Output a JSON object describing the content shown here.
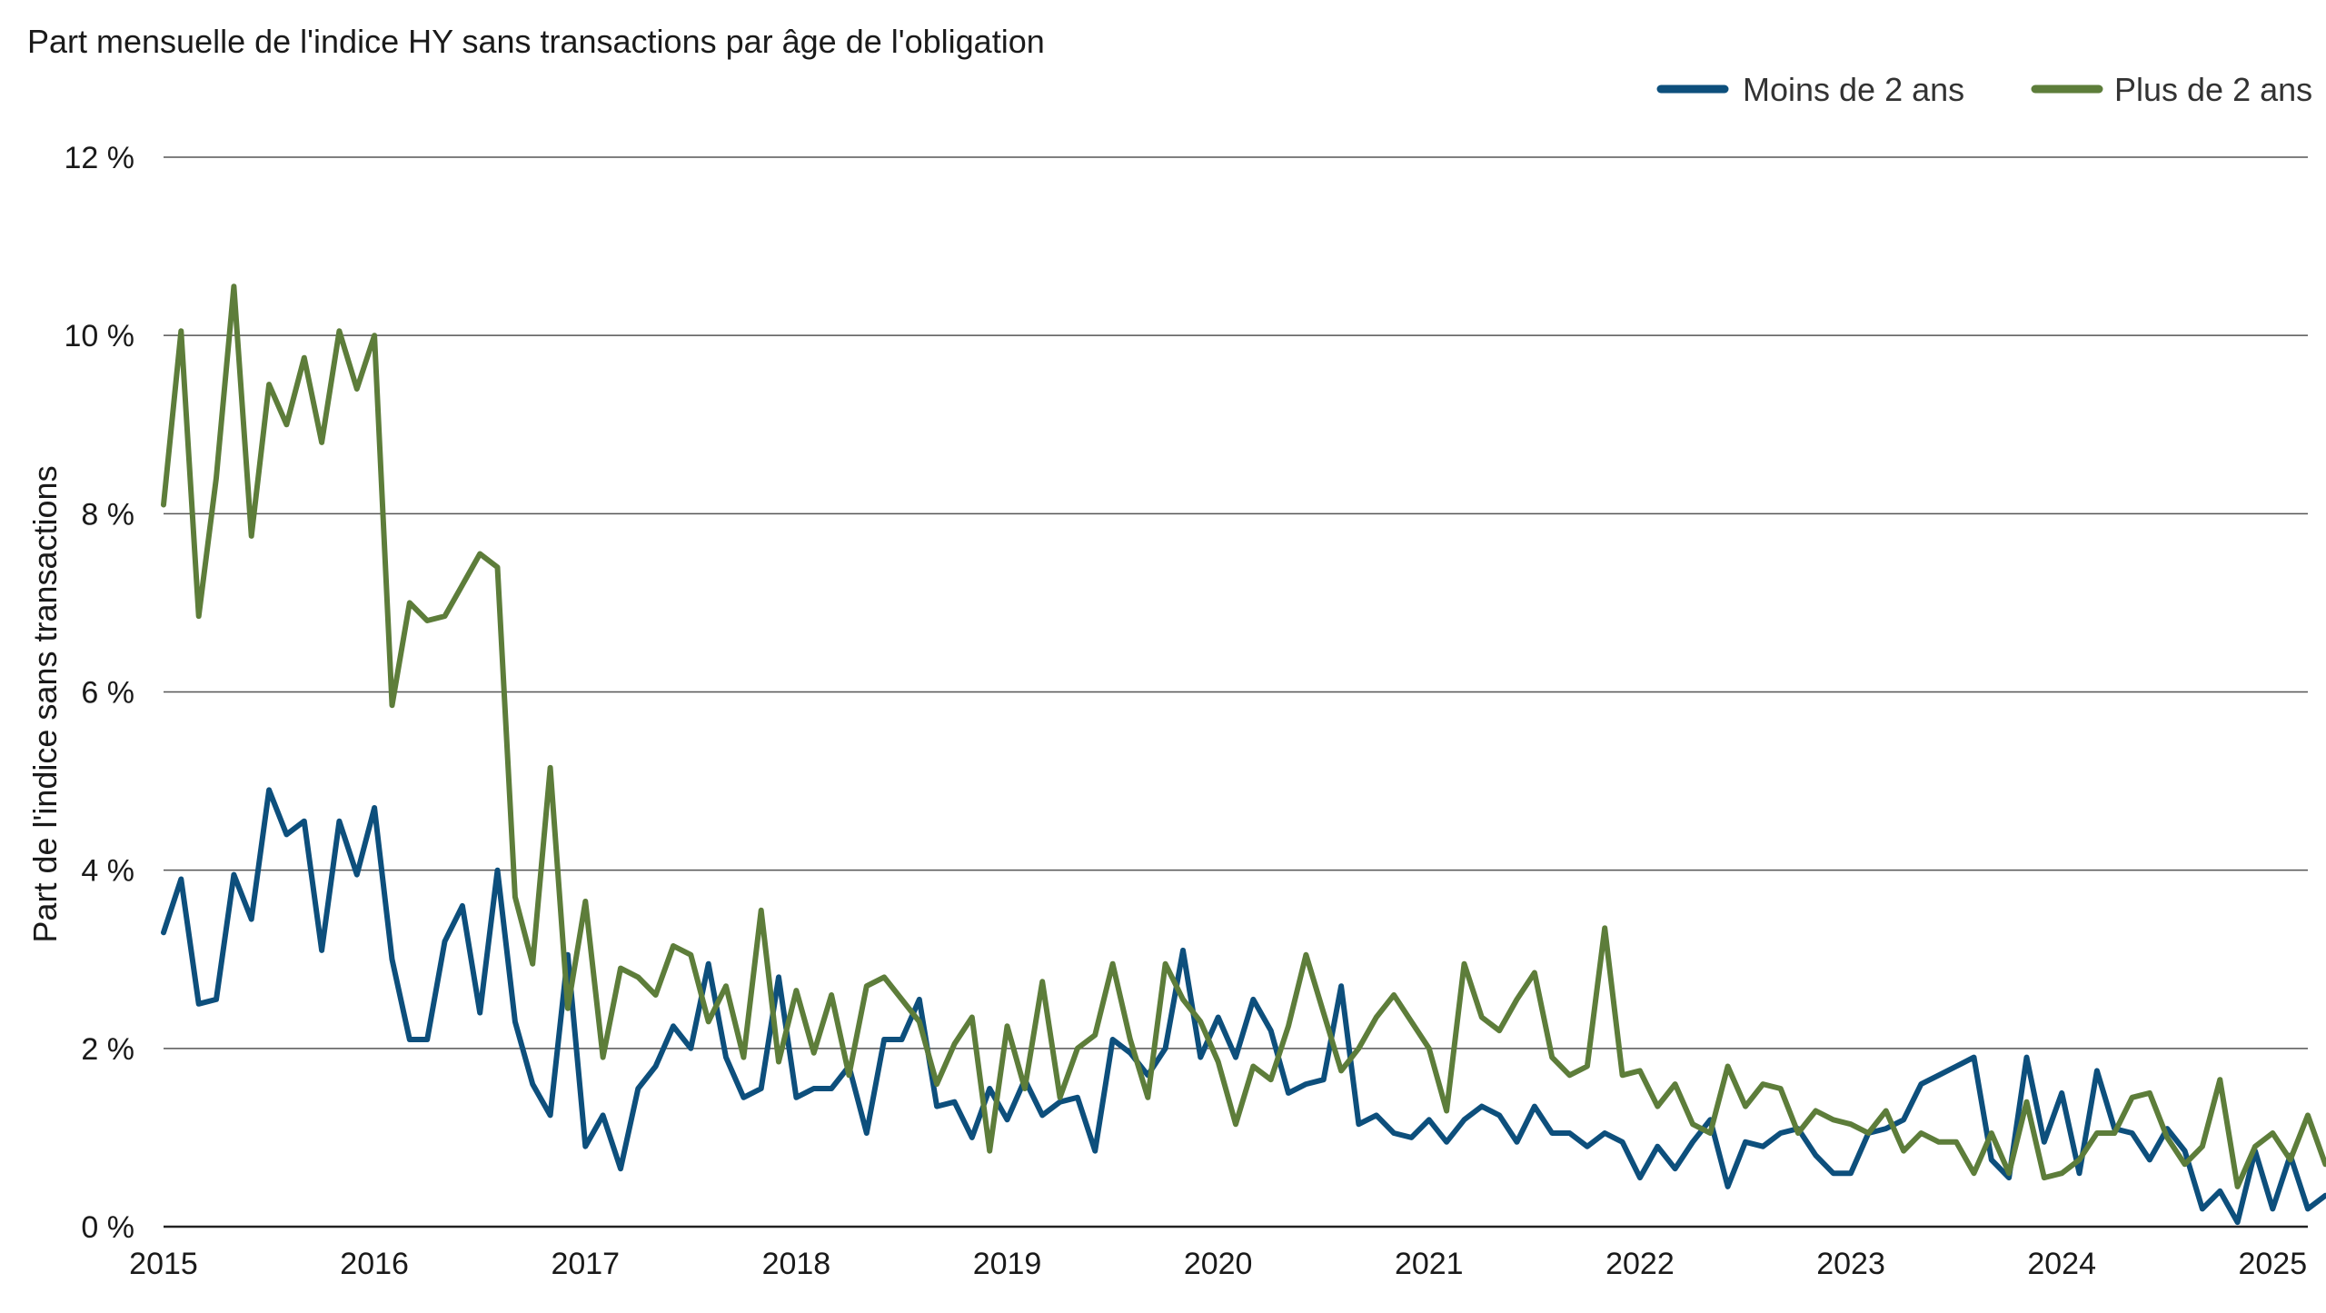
{
  "chart_data": {
    "type": "line",
    "title": "Part mensuelle de l'indice HY sans transactions par âge de l'obligation",
    "ylabel": "Part de l'indice sans transactions",
    "xlabel": "",
    "x_start": "2015-01",
    "x_ticks": [
      "2015",
      "2016",
      "2017",
      "2018",
      "2019",
      "2020",
      "2021",
      "2022",
      "2023",
      "2024",
      "2025"
    ],
    "xlim": [
      "2015-01",
      "2025-03"
    ],
    "ylim": [
      0,
      12
    ],
    "y_ticks": [
      0,
      2,
      4,
      6,
      8,
      10,
      12
    ],
    "y_tick_labels": [
      "0 %",
      "2 %",
      "4 %",
      "6 %",
      "8 %",
      "10 %",
      "12 %"
    ],
    "grid": true,
    "legend_position": "top-right",
    "series": [
      {
        "name": "Moins de 2 ans",
        "color": "#0d4f7c",
        "values": [
          3.3,
          3.9,
          2.5,
          2.55,
          3.95,
          3.45,
          4.9,
          4.4,
          4.55,
          3.1,
          4.55,
          3.95,
          4.7,
          3.0,
          2.1,
          2.1,
          3.2,
          3.6,
          2.4,
          4.0,
          2.3,
          1.6,
          1.25,
          3.05,
          0.9,
          1.25,
          0.65,
          1.55,
          1.8,
          2.25,
          2.0,
          2.95,
          1.9,
          1.45,
          1.55,
          2.8,
          1.45,
          1.55,
          1.55,
          1.8,
          1.05,
          2.1,
          2.1,
          2.55,
          1.35,
          1.4,
          1.0,
          1.55,
          1.2,
          1.65,
          1.25,
          1.4,
          1.45,
          0.85,
          2.1,
          1.95,
          1.7,
          2.0,
          3.1,
          1.9,
          2.35,
          1.9,
          2.55,
          2.2,
          1.5,
          1.6,
          1.65,
          2.7,
          1.15,
          1.25,
          1.05,
          1.0,
          1.2,
          0.95,
          1.2,
          1.35,
          1.25,
          0.95,
          1.35,
          1.05,
          1.05,
          0.9,
          1.05,
          0.95,
          0.55,
          0.9,
          0.65,
          0.95,
          1.2,
          0.45,
          0.95,
          0.9,
          1.05,
          1.1,
          0.8,
          0.6,
          0.6,
          1.05,
          1.1,
          1.2,
          1.6,
          1.7,
          1.8,
          1.9,
          0.75,
          0.55,
          1.9,
          0.95,
          1.5,
          0.6,
          1.75,
          1.1,
          1.05,
          0.75,
          1.1,
          0.85,
          0.2,
          0.4,
          0.05,
          0.85,
          0.2,
          0.8,
          0.2,
          0.35,
          0.35,
          0.65,
          0.8,
          0.75,
          0.6,
          0.2,
          0.85,
          0.3,
          0.4,
          0.15,
          1.05
        ]
      },
      {
        "name": "Plus de 2 ans",
        "color": "#5d7d3a",
        "values": [
          8.1,
          10.05,
          6.85,
          8.4,
          10.55,
          7.75,
          9.45,
          9.0,
          9.75,
          8.8,
          10.05,
          9.4,
          10.0,
          5.85,
          7.0,
          6.8,
          6.85,
          7.2,
          7.55,
          7.4,
          3.7,
          2.95,
          5.15,
          2.45,
          3.65,
          1.9,
          2.9,
          2.8,
          2.6,
          3.15,
          3.05,
          2.3,
          2.7,
          1.9,
          3.55,
          1.85,
          2.65,
          1.95,
          2.6,
          1.7,
          2.7,
          2.8,
          2.55,
          2.3,
          1.6,
          2.05,
          2.35,
          0.85,
          2.25,
          1.55,
          2.75,
          1.45,
          2.0,
          2.15,
          2.95,
          2.1,
          1.45,
          2.95,
          2.55,
          2.3,
          1.85,
          1.15,
          1.8,
          1.65,
          2.25,
          3.05,
          2.4,
          1.75,
          2.0,
          2.35,
          2.6,
          2.3,
          2.0,
          1.3,
          2.95,
          2.35,
          2.2,
          2.55,
          2.85,
          1.9,
          1.7,
          1.8,
          3.35,
          1.7,
          1.75,
          1.35,
          1.6,
          1.15,
          1.05,
          1.8,
          1.35,
          1.6,
          1.55,
          1.05,
          1.3,
          1.2,
          1.15,
          1.05,
          1.3,
          0.85,
          1.05,
          0.95,
          0.95,
          0.6,
          1.05,
          0.6,
          1.4,
          0.55,
          0.6,
          0.75,
          1.05,
          1.05,
          1.45,
          1.5,
          1.0,
          0.7,
          0.9,
          1.65,
          0.45,
          0.9,
          1.05,
          0.75,
          1.25,
          0.7,
          0.85,
          0.95,
          1.1,
          0.95,
          1.9,
          1.7,
          1.0,
          1.0,
          0.85
        ]
      }
    ]
  }
}
